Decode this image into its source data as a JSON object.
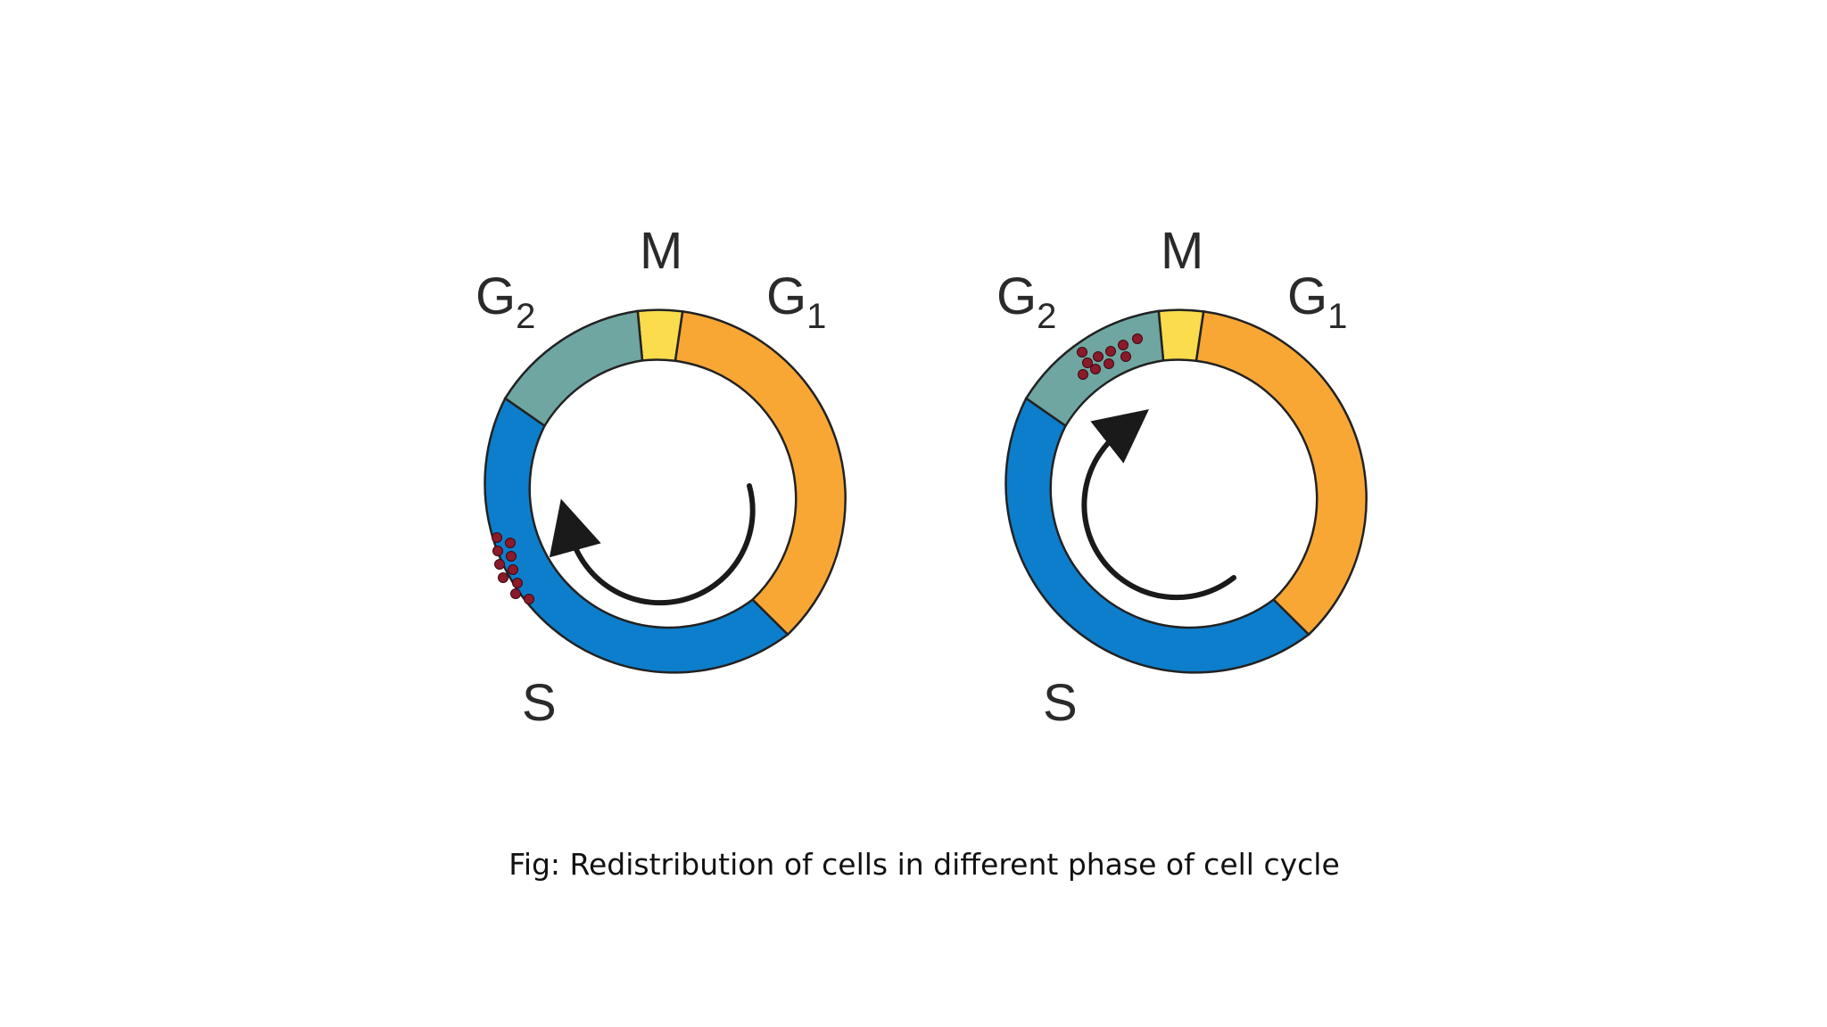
{
  "caption": "Fig: Redistribution of cells in different phase of cell cycle",
  "colors": {
    "M": "#fbdc4c",
    "G1": "#f8a735",
    "G2": "#6fa6a1",
    "S": "#0d7ecb",
    "outline": "#222222",
    "cells": "#8b1a2b",
    "arrow": "#1a1a1a"
  },
  "diagrams": [
    {
      "labels": {
        "G2": "G",
        "G2_sub": "2",
        "M": "M",
        "G1": "G",
        "G1_sub": "1",
        "S": "S"
      },
      "cell_cluster_phase": "S",
      "arrow_icon": "counterclockwise-arrow-icon"
    },
    {
      "labels": {
        "G2": "G",
        "G2_sub": "2",
        "M": "M",
        "G1": "G",
        "G1_sub": "1",
        "S": "S"
      },
      "cell_cluster_phase": "G2",
      "arrow_icon": "clockwise-arrow-icon"
    }
  ]
}
